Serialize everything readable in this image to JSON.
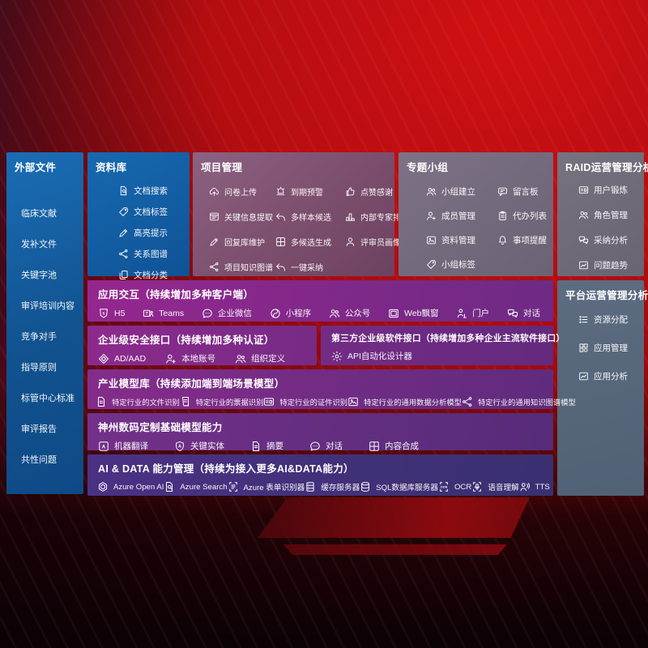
{
  "colors": {
    "background_red": "#b90d10",
    "panel_blue": "#1467ad",
    "panel_mauve": "#7c4e6d",
    "panel_gray": "#6f6d79",
    "panel_slate": "#546579",
    "band_purple": "#8e2b8d",
    "band_indigo": "#43307c",
    "text": "#ffffff"
  },
  "sections": {
    "sidebar": {
      "title": "外部文件",
      "items": [
        {
          "label": "临床文献"
        },
        {
          "label": "发补文件"
        },
        {
          "label": "关键字池"
        },
        {
          "label": "审评培训内容"
        },
        {
          "label": "竞争对手"
        },
        {
          "label": "指导原则"
        },
        {
          "label": "标管中心标准"
        },
        {
          "label": "审评报告"
        },
        {
          "label": "共性问题"
        }
      ]
    },
    "library": {
      "title": "资料库",
      "items": [
        {
          "icon": "doc-search",
          "label": "文档搜索"
        },
        {
          "icon": "tag",
          "label": "文档标签"
        },
        {
          "icon": "highlight",
          "label": "高亮提示"
        },
        {
          "icon": "graph",
          "label": "关系图谱"
        },
        {
          "icon": "copy",
          "label": "文档分类"
        }
      ]
    },
    "project": {
      "title": "项目管理",
      "items": [
        {
          "icon": "cloud-upload",
          "label": "问卷上传"
        },
        {
          "icon": "alarm",
          "label": "到期预警"
        },
        {
          "icon": "thumb-up",
          "label": "点赞感谢"
        },
        {
          "icon": "info-extract",
          "label": "关键信息提取"
        },
        {
          "icon": "reply",
          "label": "多样本候选"
        },
        {
          "icon": "ranking",
          "label": "内部专家排名"
        },
        {
          "icon": "edit",
          "label": "回复库维护"
        },
        {
          "icon": "multi-window",
          "label": "多候选生成"
        },
        {
          "icon": "person",
          "label": "评审员画像"
        },
        {
          "icon": "knowledge-graph",
          "label": "项目知识图谱"
        },
        {
          "icon": "adopt-arrow",
          "label": "一键采纳"
        }
      ]
    },
    "groups": {
      "title": "专题小组",
      "items": [
        {
          "icon": "people",
          "label": "小组建立"
        },
        {
          "icon": "bbs",
          "label": "留言板"
        },
        {
          "icon": "person-add",
          "label": "成员管理"
        },
        {
          "icon": "clipboard",
          "label": "代办列表"
        },
        {
          "icon": "photo-doc",
          "label": "资料管理"
        },
        {
          "icon": "bell",
          "label": "事项提醒"
        },
        {
          "icon": "tags",
          "label": "小组标签"
        }
      ]
    },
    "raid": {
      "title": "RAID运营管理分析",
      "items": [
        {
          "icon": "id-card",
          "label": "用户锻炼"
        },
        {
          "icon": "roles",
          "label": "角色管理"
        },
        {
          "icon": "qa-bubbles",
          "label": "采纳分析"
        },
        {
          "icon": "trend",
          "label": "问题趋势"
        }
      ]
    },
    "platform": {
      "title": "平台运营管理分析",
      "items": [
        {
          "icon": "resource-list",
          "label": "资源分配"
        },
        {
          "icon": "app-grid",
          "label": "应用管理"
        },
        {
          "icon": "chart-board",
          "label": "应用分析"
        }
      ]
    },
    "interact": {
      "title": "应用交互（持续增加多种客户端）",
      "items": [
        {
          "icon": "h5",
          "label": "H5"
        },
        {
          "icon": "teams",
          "label": "Teams"
        },
        {
          "icon": "wechat-work",
          "label": "企业微信"
        },
        {
          "icon": "miniprogram",
          "label": "小程序"
        },
        {
          "icon": "official-account",
          "label": "公众号"
        },
        {
          "icon": "web-window",
          "label": "Web飘窗"
        },
        {
          "icon": "portal",
          "label": "门户"
        },
        {
          "icon": "dialog",
          "label": "对话"
        }
      ]
    },
    "security": {
      "title": "企业级安全接口（持续增加多种认证）",
      "items": [
        {
          "icon": "ad-shield",
          "label": "AD/AAD"
        },
        {
          "icon": "local-account",
          "label": "本地账号"
        },
        {
          "icon": "org-define",
          "label": "组织定义"
        }
      ]
    },
    "third": {
      "title": "第三方企业级软件接口（持续增加多种企业主流软件接口）",
      "items": [
        {
          "icon": "api-gear",
          "label": "API自动化设计器"
        }
      ]
    },
    "industry": {
      "title": "产业模型库（持续添加端到端场景模型）",
      "items": [
        {
          "icon": "file-recognition",
          "label": "特定行业的文件识别"
        },
        {
          "icon": "invoice-recognition",
          "label": "特定行业的票据识别"
        },
        {
          "icon": "idcard-recognition",
          "label": "特定行业的证件识别"
        },
        {
          "icon": "data-model",
          "label": "特定行业的通用数据分析模型"
        },
        {
          "icon": "knowledge-graph",
          "label": "特定行业的通用知识图谱模型"
        }
      ]
    },
    "dc": {
      "title": "神州数码定制基础模型能力",
      "items": [
        {
          "icon": "translate",
          "label": "机器翻译"
        },
        {
          "icon": "entity-shield",
          "label": "关键实体"
        },
        {
          "icon": "summary-doc",
          "label": "摘要"
        },
        {
          "icon": "chat",
          "label": "对话"
        },
        {
          "icon": "compose-grid",
          "label": "内容合成"
        }
      ]
    },
    "ai": {
      "title": "AI & DATA 能力管理（持续为接入更多AI&DATA能力）",
      "items": [
        {
          "icon": "openai",
          "label": "Azure Open AI"
        },
        {
          "icon": "azure-search",
          "label": "Azure Search"
        },
        {
          "icon": "form-recognizer",
          "label": "Azure 表单识别器"
        },
        {
          "icon": "cache-server",
          "label": "缓存服务器"
        },
        {
          "icon": "sql-database",
          "label": "SQL数据库服务器"
        },
        {
          "icon": "ocr",
          "label": "OCR"
        },
        {
          "icon": "speech",
          "label": "语音理解"
        },
        {
          "icon": "tts",
          "label": "TTS"
        }
      ]
    }
  }
}
